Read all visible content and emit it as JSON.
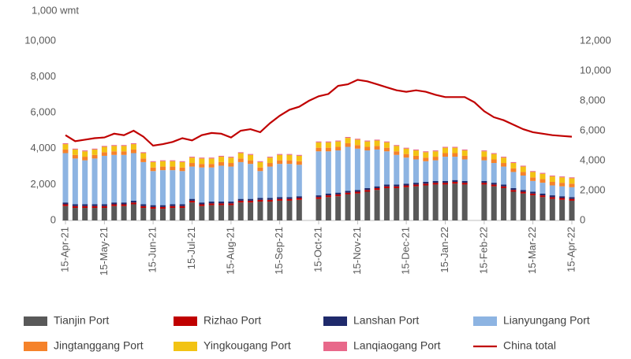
{
  "chart_data": {
    "type": "bar",
    "stacked": true,
    "y_label": "1,000 wmt",
    "categories": [
      "15-Apr-21",
      null,
      null,
      null,
      "15-May-21",
      null,
      null,
      null,
      null,
      "15-Jun-21",
      null,
      null,
      null,
      "15-Jul-21",
      null,
      null,
      null,
      "15-Aug-21",
      null,
      null,
      null,
      null,
      "15-Sep-21",
      null,
      null,
      null,
      "15-Oct-21",
      null,
      null,
      null,
      "15-Nov-21",
      null,
      null,
      null,
      null,
      "15-Dec-21",
      null,
      null,
      null,
      "15-Jan-22",
      null,
      null,
      null,
      "15-Feb-22",
      null,
      null,
      null,
      null,
      "15-Mar-22",
      null,
      null,
      null,
      "15-Apr-22"
    ],
    "ylim": [
      0,
      10000
    ],
    "yticks": [
      0,
      {
        "value": 2000,
        "label": "2,000"
      },
      {
        "value": 4000,
        "label": "4,000"
      },
      {
        "value": 6000,
        "label": "6,000"
      },
      {
        "value": 8000,
        "label": "8,000"
      },
      {
        "value": 10000,
        "label": "10,000"
      }
    ],
    "y2lim": [
      0,
      12000
    ],
    "y2ticks": [
      0,
      {
        "value": 2000,
        "label": "2,000"
      },
      {
        "value": 4000,
        "label": "4,000"
      },
      {
        "value": 6000,
        "label": "6,000"
      },
      {
        "value": 8000,
        "label": "8,000"
      },
      {
        "value": 10000,
        "label": "10,000"
      },
      {
        "value": 12000,
        "label": "12,000"
      }
    ],
    "series": [
      {
        "name": "Tianjin Port",
        "color": "#595959",
        "values": [
          800,
          700,
          700,
          700,
          700,
          800,
          800,
          900,
          700,
          650,
          650,
          700,
          700,
          1000,
          800,
          850,
          850,
          850,
          1000,
          1000,
          1050,
          1050,
          1100,
          1100,
          1150,
          null,
          1200,
          1300,
          1350,
          1450,
          1500,
          1600,
          1700,
          1800,
          1800,
          1850,
          1900,
          1950,
          2000,
          2000,
          2050,
          2000,
          null,
          2000,
          1900,
          1800,
          1600,
          1500,
          1400,
          1300,
          1200,
          1150,
          1100
        ]
      },
      {
        "name": "Rizhao Port",
        "color": "#c00000",
        "values": [
          100,
          100,
          100,
          100,
          100,
          100,
          100,
          100,
          100,
          100,
          100,
          100,
          100,
          100,
          100,
          100,
          100,
          100,
          100,
          100,
          100,
          100,
          100,
          100,
          100,
          null,
          100,
          100,
          100,
          100,
          100,
          100,
          100,
          100,
          100,
          100,
          100,
          100,
          100,
          100,
          100,
          100,
          null,
          100,
          100,
          100,
          100,
          100,
          100,
          100,
          100,
          100,
          100
        ]
      },
      {
        "name": "Lanshan Port",
        "color": "#1f2a6b",
        "values": [
          100,
          100,
          100,
          100,
          100,
          100,
          100,
          100,
          100,
          100,
          100,
          100,
          100,
          100,
          100,
          100,
          100,
          100,
          100,
          100,
          100,
          100,
          100,
          100,
          100,
          null,
          100,
          100,
          100,
          100,
          100,
          100,
          100,
          100,
          100,
          100,
          100,
          100,
          100,
          100,
          100,
          100,
          null,
          100,
          100,
          100,
          100,
          100,
          100,
          100,
          100,
          100,
          100
        ]
      },
      {
        "name": "Lianyungang Port",
        "color": "#8db4e2",
        "values": [
          2750,
          2550,
          2450,
          2550,
          2700,
          2650,
          2650,
          2650,
          2350,
          1900,
          1950,
          1900,
          1850,
          1800,
          1950,
          1900,
          2000,
          1950,
          2050,
          1950,
          1500,
          1750,
          1850,
          1850,
          1750,
          null,
          2450,
          2350,
          2350,
          2450,
          2300,
          2100,
          2050,
          1850,
          1650,
          1450,
          1300,
          1150,
          1150,
          1350,
          1300,
          1200,
          null,
          1150,
          1100,
          1000,
          900,
          800,
          600,
          600,
          550,
          550,
          550
        ]
      },
      {
        "name": "Jingtanggang Port",
        "color": "#f5822a",
        "values": [
          200,
          200,
          200,
          200,
          200,
          200,
          200,
          200,
          200,
          200,
          200,
          200,
          200,
          200,
          200,
          200,
          200,
          200,
          200,
          200,
          200,
          200,
          200,
          200,
          200,
          null,
          200,
          200,
          200,
          200,
          200,
          200,
          200,
          200,
          200,
          200,
          200,
          200,
          200,
          200,
          200,
          200,
          null,
          200,
          200,
          200,
          200,
          200,
          200,
          200,
          200,
          200,
          200
        ]
      },
      {
        "name": "Yingkougang Port",
        "color": "#f2c314",
        "values": [
          300,
          300,
          300,
          300,
          300,
          300,
          300,
          300,
          300,
          300,
          300,
          300,
          300,
          300,
          300,
          300,
          300,
          300,
          300,
          300,
          300,
          300,
          300,
          300,
          300,
          null,
          300,
          300,
          300,
          300,
          300,
          300,
          300,
          300,
          300,
          300,
          300,
          300,
          300,
          300,
          300,
          300,
          null,
          300,
          300,
          300,
          300,
          300,
          300,
          300,
          300,
          300,
          300
        ]
      },
      {
        "name": "Lanqiaogang Port",
        "color": "#e8688a",
        "values": [
          50,
          50,
          50,
          50,
          50,
          50,
          50,
          50,
          50,
          50,
          50,
          50,
          50,
          50,
          50,
          50,
          50,
          50,
          50,
          50,
          50,
          50,
          50,
          50,
          50,
          null,
          50,
          50,
          50,
          50,
          50,
          50,
          50,
          50,
          50,
          50,
          50,
          50,
          50,
          50,
          50,
          50,
          null,
          50,
          50,
          50,
          50,
          50,
          50,
          50,
          50,
          50,
          50
        ]
      },
      {
        "name": "China total",
        "color": "#c00000",
        "type": "line",
        "axis": "y2",
        "values": [
          5700,
          5300,
          5400,
          5500,
          5550,
          5800,
          5700,
          6000,
          5600,
          5000,
          5100,
          5250,
          5500,
          5350,
          5700,
          5850,
          5800,
          5550,
          6000,
          6100,
          5900,
          6500,
          7000,
          7400,
          7600,
          8000,
          8300,
          8450,
          9000,
          9100,
          9400,
          9300,
          9100,
          8900,
          8700,
          8600,
          8700,
          8600,
          8400,
          8250,
          8250,
          8250,
          7900,
          7300,
          6900,
          6700,
          6400,
          6100,
          5900,
          5800,
          5700,
          5650,
          5600
        ]
      }
    ]
  }
}
